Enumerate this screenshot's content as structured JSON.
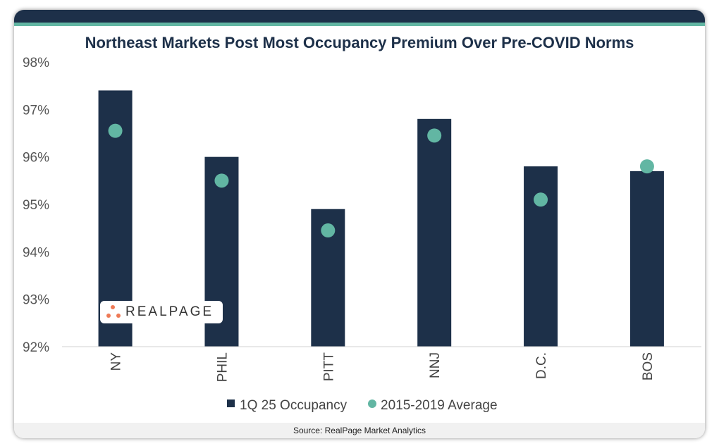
{
  "chart_data": {
    "type": "bar",
    "title": "Northeast Markets Post Most Occupancy Premium Over Pre-COVID Norms",
    "categories": [
      "NY",
      "PHIL",
      "PITT",
      "NNJ",
      "D.C.",
      "BOS"
    ],
    "series": [
      {
        "name": "1Q 25 Occupancy",
        "kind": "bar",
        "color": "#1d3049",
        "values": [
          97.4,
          96.0,
          94.9,
          96.8,
          95.8,
          95.7
        ]
      },
      {
        "name": "2015-2019 Average",
        "kind": "marker",
        "color": "#62b6a3",
        "values": [
          96.55,
          95.5,
          94.45,
          96.45,
          95.1,
          95.8
        ]
      }
    ],
    "ylim": [
      92,
      98
    ],
    "yticks": [
      92,
      93,
      94,
      95,
      96,
      97,
      98
    ],
    "ytick_labels": [
      "92%",
      "93%",
      "94%",
      "95%",
      "96%",
      "97%",
      "98%"
    ],
    "xlabel": "",
    "ylabel": "",
    "legend_position": "bottom",
    "grid": false
  },
  "source": "Source: RealPage Market Analytics",
  "logo_text": "REALPAGE"
}
